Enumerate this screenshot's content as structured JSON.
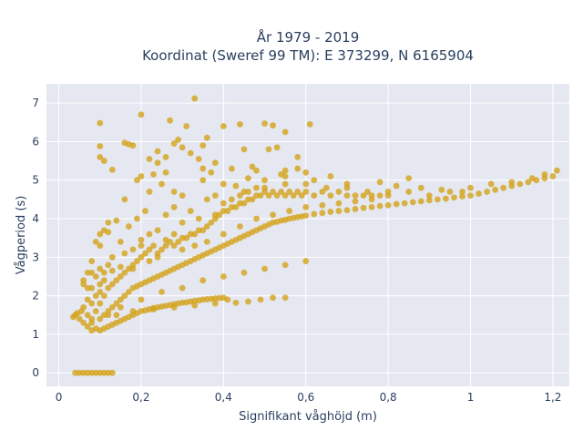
{
  "chart_data": {
    "type": "scatter",
    "title_line1": "År 1979 - 2019",
    "title_line2": "Koordinat (Sweref 99 TM): E 373299, N 6165904",
    "xlabel": "Signifikant våghöjd (m)",
    "ylabel": "Vågperiod (s)",
    "xlim": [
      -0.03,
      1.24
    ],
    "ylim": [
      -0.35,
      7.5
    ],
    "x_ticks": [
      0,
      0.2,
      0.4,
      0.6,
      0.8,
      1,
      1.2
    ],
    "x_tick_labels": [
      "0",
      "0,2",
      "0,4",
      "0,6",
      "0,8",
      "1",
      "1,2"
    ],
    "y_ticks": [
      0,
      1,
      2,
      3,
      4,
      5,
      6,
      7
    ],
    "y_tick_labels": [
      "0",
      "1",
      "2",
      "3",
      "4",
      "5",
      "6",
      "7"
    ],
    "grid": true,
    "marker_color": "#d4a21c",
    "background_color": "#e5e8f1",
    "points": [
      [
        0.04,
        0
      ],
      [
        0.05,
        0
      ],
      [
        0.06,
        0
      ],
      [
        0.07,
        0
      ],
      [
        0.08,
        0
      ],
      [
        0.09,
        0
      ],
      [
        0.1,
        0
      ],
      [
        0.11,
        0
      ],
      [
        0.12,
        0
      ],
      [
        0.13,
        0
      ],
      [
        0.035,
        1.45
      ],
      [
        0.04,
        1.5
      ],
      [
        0.045,
        1.55
      ],
      [
        0.05,
        1.4
      ],
      [
        0.055,
        1.6
      ],
      [
        0.06,
        1.3
      ],
      [
        0.06,
        1.7
      ],
      [
        0.07,
        1.2
      ],
      [
        0.07,
        1.5
      ],
      [
        0.07,
        1.9
      ],
      [
        0.08,
        1.1
      ],
      [
        0.08,
        1.4
      ],
      [
        0.08,
        1.8
      ],
      [
        0.08,
        2.2
      ],
      [
        0.09,
        1.15
      ],
      [
        0.09,
        1.6
      ],
      [
        0.09,
        2.0
      ],
      [
        0.09,
        2.5
      ],
      [
        0.1,
        1.1
      ],
      [
        0.1,
        1.4
      ],
      [
        0.1,
        1.8
      ],
      [
        0.1,
        2.3
      ],
      [
        0.1,
        2.7
      ],
      [
        0.11,
        1.15
      ],
      [
        0.11,
        1.5
      ],
      [
        0.11,
        2.0
      ],
      [
        0.11,
        2.6
      ],
      [
        0.12,
        1.2
      ],
      [
        0.12,
        1.6
      ],
      [
        0.12,
        2.2
      ],
      [
        0.12,
        2.8
      ],
      [
        0.13,
        1.25
      ],
      [
        0.13,
        1.7
      ],
      [
        0.13,
        2.3
      ],
      [
        0.13,
        3.0
      ],
      [
        0.14,
        1.3
      ],
      [
        0.14,
        1.8
      ],
      [
        0.14,
        2.4
      ],
      [
        0.15,
        1.35
      ],
      [
        0.15,
        1.9
      ],
      [
        0.15,
        2.5
      ],
      [
        0.16,
        1.4
      ],
      [
        0.16,
        2.0
      ],
      [
        0.16,
        2.6
      ],
      [
        0.17,
        1.45
      ],
      [
        0.17,
        2.1
      ],
      [
        0.17,
        2.7
      ],
      [
        0.18,
        1.5
      ],
      [
        0.18,
        2.2
      ],
      [
        0.18,
        2.8
      ],
      [
        0.19,
        1.55
      ],
      [
        0.19,
        2.25
      ],
      [
        0.19,
        2.9
      ],
      [
        0.2,
        1.6
      ],
      [
        0.2,
        2.3
      ],
      [
        0.2,
        3.0
      ],
      [
        0.21,
        1.62
      ],
      [
        0.21,
        2.35
      ],
      [
        0.21,
        3.1
      ],
      [
        0.22,
        1.65
      ],
      [
        0.22,
        2.4
      ],
      [
        0.22,
        3.2
      ],
      [
        0.23,
        1.68
      ],
      [
        0.23,
        2.45
      ],
      [
        0.23,
        3.3
      ],
      [
        0.24,
        1.7
      ],
      [
        0.24,
        2.5
      ],
      [
        0.24,
        3.1
      ],
      [
        0.25,
        1.72
      ],
      [
        0.25,
        2.55
      ],
      [
        0.25,
        3.2
      ],
      [
        0.26,
        1.74
      ],
      [
        0.26,
        2.6
      ],
      [
        0.26,
        3.3
      ],
      [
        0.27,
        1.76
      ],
      [
        0.27,
        2.65
      ],
      [
        0.27,
        3.4
      ],
      [
        0.28,
        1.78
      ],
      [
        0.28,
        2.7
      ],
      [
        0.28,
        3.3
      ],
      [
        0.29,
        1.8
      ],
      [
        0.29,
        2.75
      ],
      [
        0.29,
        3.4
      ],
      [
        0.3,
        1.82
      ],
      [
        0.3,
        2.8
      ],
      [
        0.3,
        3.5
      ],
      [
        0.31,
        1.83
      ],
      [
        0.31,
        2.85
      ],
      [
        0.31,
        3.5
      ],
      [
        0.32,
        1.85
      ],
      [
        0.32,
        2.9
      ],
      [
        0.32,
        3.6
      ],
      [
        0.33,
        1.87
      ],
      [
        0.33,
        2.95
      ],
      [
        0.33,
        3.6
      ],
      [
        0.34,
        1.88
      ],
      [
        0.34,
        3.0
      ],
      [
        0.34,
        3.7
      ],
      [
        0.35,
        1.9
      ],
      [
        0.35,
        3.05
      ],
      [
        0.35,
        3.7
      ],
      [
        0.36,
        1.91
      ],
      [
        0.36,
        3.1
      ],
      [
        0.36,
        3.8
      ],
      [
        0.37,
        1.92
      ],
      [
        0.37,
        3.15
      ],
      [
        0.37,
        3.9
      ],
      [
        0.38,
        1.93
      ],
      [
        0.38,
        3.2
      ],
      [
        0.38,
        4.0
      ],
      [
        0.39,
        1.94
      ],
      [
        0.39,
        3.25
      ],
      [
        0.39,
        4.1
      ],
      [
        0.4,
        1.95
      ],
      [
        0.4,
        3.3
      ],
      [
        0.4,
        4.2
      ],
      [
        0.41,
        3.35
      ],
      [
        0.41,
        4.2
      ],
      [
        0.42,
        3.4
      ],
      [
        0.42,
        4.3
      ],
      [
        0.43,
        3.45
      ],
      [
        0.43,
        4.3
      ],
      [
        0.44,
        3.5
      ],
      [
        0.44,
        4.4
      ],
      [
        0.45,
        3.55
      ],
      [
        0.45,
        4.4
      ],
      [
        0.46,
        3.6
      ],
      [
        0.46,
        4.5
      ],
      [
        0.47,
        3.65
      ],
      [
        0.47,
        4.5
      ],
      [
        0.48,
        3.7
      ],
      [
        0.48,
        4.6
      ],
      [
        0.49,
        3.75
      ],
      [
        0.49,
        4.6
      ],
      [
        0.5,
        3.8
      ],
      [
        0.5,
        4.7
      ],
      [
        0.51,
        3.85
      ],
      [
        0.51,
        4.6
      ],
      [
        0.52,
        3.9
      ],
      [
        0.52,
        4.7
      ],
      [
        0.53,
        3.92
      ],
      [
        0.53,
        4.6
      ],
      [
        0.54,
        3.95
      ],
      [
        0.54,
        4.7
      ],
      [
        0.55,
        3.97
      ],
      [
        0.55,
        4.6
      ],
      [
        0.56,
        4.0
      ],
      [
        0.56,
        4.7
      ],
      [
        0.57,
        4.02
      ],
      [
        0.57,
        4.6
      ],
      [
        0.58,
        4.04
      ],
      [
        0.58,
        4.7
      ],
      [
        0.59,
        4.06
      ],
      [
        0.59,
        4.6
      ],
      [
        0.6,
        4.08
      ],
      [
        0.6,
        4.7
      ],
      [
        0.62,
        4.12
      ],
      [
        0.62,
        4.6
      ],
      [
        0.64,
        4.15
      ],
      [
        0.64,
        4.7
      ],
      [
        0.66,
        4.18
      ],
      [
        0.66,
        4.6
      ],
      [
        0.68,
        4.2
      ],
      [
        0.68,
        4.7
      ],
      [
        0.7,
        4.22
      ],
      [
        0.7,
        4.6
      ],
      [
        0.72,
        4.25
      ],
      [
        0.72,
        4.6
      ],
      [
        0.74,
        4.28
      ],
      [
        0.74,
        4.6
      ],
      [
        0.76,
        4.3
      ],
      [
        0.76,
        4.6
      ],
      [
        0.78,
        4.33
      ],
      [
        0.78,
        4.6
      ],
      [
        0.8,
        4.35
      ],
      [
        0.8,
        4.6
      ],
      [
        0.82,
        4.38
      ],
      [
        0.84,
        4.4
      ],
      [
        0.86,
        4.43
      ],
      [
        0.88,
        4.45
      ],
      [
        0.9,
        4.48
      ],
      [
        0.92,
        4.5
      ],
      [
        0.94,
        4.52
      ],
      [
        0.96,
        4.55
      ],
      [
        0.98,
        4.58
      ],
      [
        1.0,
        4.6
      ],
      [
        1.02,
        4.65
      ],
      [
        1.04,
        4.7
      ],
      [
        1.06,
        4.75
      ],
      [
        1.08,
        4.8
      ],
      [
        1.1,
        4.85
      ],
      [
        1.12,
        4.9
      ],
      [
        1.14,
        4.95
      ],
      [
        1.16,
        5.0
      ],
      [
        1.18,
        5.05
      ],
      [
        1.2,
        5.1
      ],
      [
        1.21,
        5.25
      ],
      [
        0.18,
        2.7
      ],
      [
        0.2,
        3.3
      ],
      [
        0.22,
        3.6
      ],
      [
        0.24,
        3.7
      ],
      [
        0.3,
        3.9
      ],
      [
        0.34,
        4.0
      ],
      [
        0.38,
        4.1
      ],
      [
        0.4,
        4.4
      ],
      [
        0.42,
        4.5
      ],
      [
        0.44,
        4.6
      ],
      [
        0.46,
        4.7
      ],
      [
        0.48,
        4.8
      ],
      [
        0.5,
        4.8
      ],
      [
        0.55,
        4.9
      ],
      [
        0.6,
        4.9
      ],
      [
        0.65,
        4.8
      ],
      [
        0.7,
        4.8
      ],
      [
        0.75,
        4.7
      ],
      [
        0.8,
        4.7
      ],
      [
        0.85,
        4.7
      ],
      [
        0.9,
        4.6
      ],
      [
        0.95,
        4.7
      ],
      [
        1.0,
        4.8
      ],
      [
        1.05,
        4.9
      ],
      [
        0.4,
        4.9
      ],
      [
        0.45,
        4.7
      ],
      [
        0.5,
        5.0
      ],
      [
        0.55,
        5.1
      ],
      [
        0.6,
        5.2
      ],
      [
        0.35,
        5.0
      ],
      [
        0.3,
        4.6
      ],
      [
        0.28,
        4.7
      ],
      [
        0.25,
        4.9
      ],
      [
        0.22,
        4.7
      ],
      [
        0.2,
        5.1
      ],
      [
        0.16,
        4.5
      ],
      [
        0.12,
        3.9
      ],
      [
        0.11,
        3.7
      ],
      [
        0.1,
        3.3
      ],
      [
        0.09,
        3.4
      ],
      [
        0.08,
        2.9
      ],
      [
        0.07,
        2.6
      ],
      [
        0.06,
        2.4
      ],
      [
        0.15,
        3.4
      ],
      [
        0.17,
        3.8
      ],
      [
        0.19,
        4.0
      ],
      [
        0.21,
        4.2
      ],
      [
        0.3,
        2.2
      ],
      [
        0.35,
        2.4
      ],
      [
        0.4,
        2.5
      ],
      [
        0.45,
        2.6
      ],
      [
        0.5,
        2.7
      ],
      [
        0.55,
        2.8
      ],
      [
        0.6,
        2.9
      ],
      [
        0.25,
        2.1
      ],
      [
        0.2,
        1.9
      ],
      [
        0.15,
        1.7
      ],
      [
        0.12,
        1.5
      ],
      [
        0.08,
        1.3
      ],
      [
        0.1,
        6.48
      ],
      [
        0.1,
        5.88
      ],
      [
        0.1,
        5.6
      ],
      [
        0.11,
        5.5
      ],
      [
        0.17,
        5.93
      ],
      [
        0.18,
        5.9
      ],
      [
        0.2,
        6.7
      ],
      [
        0.27,
        6.55
      ],
      [
        0.33,
        7.12
      ],
      [
        0.31,
        6.4
      ],
      [
        0.29,
        6.05
      ],
      [
        0.28,
        5.95
      ],
      [
        0.3,
        5.85
      ],
      [
        0.26,
        5.6
      ],
      [
        0.24,
        5.75
      ],
      [
        0.22,
        5.55
      ],
      [
        0.24,
        5.45
      ],
      [
        0.26,
        5.2
      ],
      [
        0.19,
        5.0
      ],
      [
        0.16,
        5.97
      ],
      [
        0.35,
        5.9
      ],
      [
        0.36,
        6.1
      ],
      [
        0.32,
        5.7
      ],
      [
        0.34,
        5.55
      ],
      [
        0.35,
        5.3
      ],
      [
        0.37,
        5.2
      ],
      [
        0.4,
        6.4
      ],
      [
        0.44,
        6.45
      ],
      [
        0.45,
        5.8
      ],
      [
        0.47,
        5.35
      ],
      [
        0.5,
        6.47
      ],
      [
        0.52,
        6.42
      ],
      [
        0.51,
        5.8
      ],
      [
        0.53,
        5.85
      ],
      [
        0.55,
        6.25
      ],
      [
        0.55,
        5.25
      ],
      [
        0.58,
        5.3
      ],
      [
        0.61,
        6.45
      ],
      [
        0.58,
        5.6
      ],
      [
        0.38,
        5.45
      ],
      [
        0.13,
        5.27
      ],
      [
        0.1,
        3.6
      ],
      [
        0.08,
        2.6
      ],
      [
        0.06,
        2.3
      ],
      [
        0.07,
        2.2
      ],
      [
        0.14,
        3.95
      ],
      [
        0.12,
        3.65
      ],
      [
        0.23,
        5.15
      ],
      [
        0.42,
        5.3
      ],
      [
        0.48,
        5.25
      ],
      [
        0.54,
        5.15
      ],
      [
        0.62,
        5.0
      ],
      [
        0.66,
        5.1
      ],
      [
        0.7,
        4.9
      ],
      [
        0.78,
        4.95
      ],
      [
        0.82,
        4.85
      ],
      [
        0.85,
        5.05
      ],
      [
        0.88,
        4.8
      ],
      [
        0.93,
        4.75
      ],
      [
        0.98,
        4.7
      ],
      [
        1.1,
        4.95
      ],
      [
        1.15,
        5.05
      ],
      [
        1.18,
        5.15
      ],
      [
        0.36,
        4.5
      ],
      [
        0.38,
        4.6
      ],
      [
        0.32,
        4.2
      ],
      [
        0.28,
        4.3
      ],
      [
        0.26,
        4.1
      ],
      [
        0.43,
        4.85
      ],
      [
        0.46,
        5.05
      ],
      [
        0.1,
        2.1
      ],
      [
        0.11,
        2.4
      ],
      [
        0.13,
        2.65
      ],
      [
        0.15,
        2.75
      ],
      [
        0.16,
        3.1
      ],
      [
        0.18,
        3.2
      ],
      [
        0.2,
        3.45
      ],
      [
        0.22,
        2.9
      ],
      [
        0.24,
        3.0
      ],
      [
        0.26,
        3.45
      ],
      [
        0.28,
        3.6
      ],
      [
        0.3,
        3.2
      ],
      [
        0.33,
        3.3
      ],
      [
        0.36,
        3.4
      ],
      [
        0.4,
        3.6
      ],
      [
        0.44,
        3.8
      ],
      [
        0.48,
        4.0
      ],
      [
        0.52,
        4.1
      ],
      [
        0.56,
        4.2
      ],
      [
        0.6,
        4.3
      ],
      [
        0.64,
        4.35
      ],
      [
        0.68,
        4.4
      ],
      [
        0.72,
        4.45
      ],
      [
        0.76,
        4.5
      ],
      [
        0.52,
        1.95
      ],
      [
        0.55,
        1.95
      ],
      [
        0.49,
        1.9
      ],
      [
        0.46,
        1.85
      ],
      [
        0.43,
        1.82
      ],
      [
        0.41,
        1.9
      ],
      [
        0.38,
        1.8
      ],
      [
        0.33,
        1.75
      ],
      [
        0.28,
        1.7
      ],
      [
        0.23,
        1.65
      ],
      [
        0.18,
        1.6
      ],
      [
        0.14,
        1.5
      ]
    ]
  }
}
